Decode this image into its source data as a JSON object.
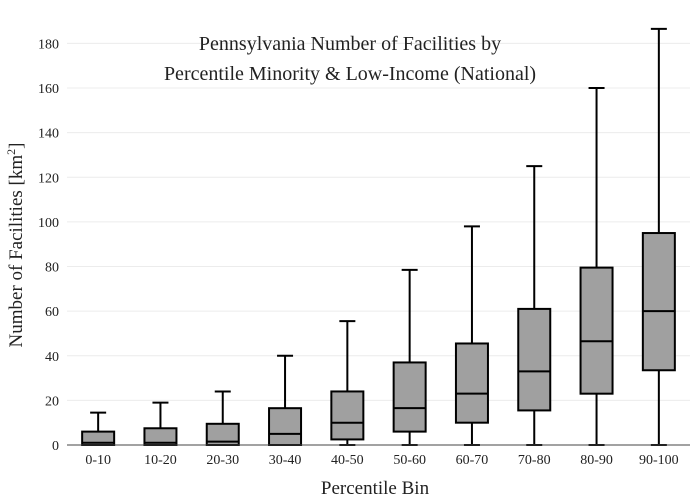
{
  "chart_data": {
    "type": "box",
    "title_lines": [
      "Pennsylvania Number of Facilities by",
      "Percentile Minority & Low-Income (National)"
    ],
    "xlabel": "Percentile Bin",
    "ylabel_main": "Number of Facilities  [km",
    "ylabel_sup": "2",
    "ylabel_end": "]",
    "ylim": [
      0,
      186
    ],
    "yticks": [
      0,
      20,
      40,
      60,
      80,
      100,
      120,
      140,
      160,
      180
    ],
    "grid": true,
    "box_fill": "#a0a0a0",
    "categories": [
      "0-10",
      "10-20",
      "20-30",
      "30-40",
      "40-50",
      "50-60",
      "60-70",
      "70-80",
      "80-90",
      "90-100"
    ],
    "boxes": [
      {
        "min": 0,
        "q1": 0,
        "median": 1,
        "q3": 6,
        "max": 14.5
      },
      {
        "min": 0,
        "q1": 0,
        "median": 1,
        "q3": 7.5,
        "max": 19
      },
      {
        "min": 0,
        "q1": 0,
        "median": 1.5,
        "q3": 9.5,
        "max": 24
      },
      {
        "min": 0,
        "q1": 0,
        "median": 5,
        "q3": 16.5,
        "max": 40
      },
      {
        "min": 0,
        "q1": 2.5,
        "median": 10,
        "q3": 24,
        "max": 55.5
      },
      {
        "min": 0,
        "q1": 6,
        "median": 16.5,
        "q3": 37,
        "max": 78.5
      },
      {
        "min": 0,
        "q1": 10,
        "median": 23,
        "q3": 45.5,
        "max": 98
      },
      {
        "min": 0,
        "q1": 15.5,
        "median": 33,
        "q3": 61,
        "max": 125
      },
      {
        "min": 0,
        "q1": 23,
        "median": 46.5,
        "q3": 79.5,
        "max": 160
      },
      {
        "min": 0,
        "q1": 33.5,
        "median": 60,
        "q3": 95,
        "max": 186.5
      }
    ]
  }
}
